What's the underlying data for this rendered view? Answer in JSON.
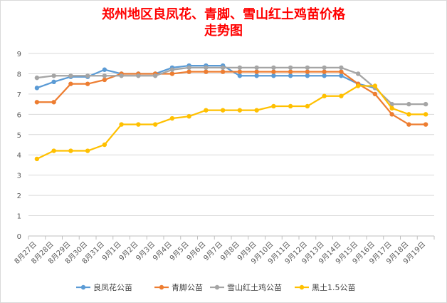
{
  "chart_data": {
    "type": "line",
    "title_line1": "郑州地区良凤花、青脚、雪山红土鸡苗价格",
    "title_line2": "走势图",
    "categories": [
      "8月27日",
      "8月28日",
      "8月29日",
      "8月30日",
      "8月31日",
      "9月1日",
      "9月2日",
      "9月3日",
      "9月4日",
      "9月5日",
      "9月6日",
      "9月7日",
      "9月8日",
      "9月9日",
      "9月10日",
      "9月11日",
      "9月12日",
      "9月13日",
      "9月14日",
      "9月15日",
      "9月16日",
      "9月17日",
      "9月18日",
      "9月19日"
    ],
    "ylim": [
      0,
      9
    ],
    "yticks": [
      0,
      1,
      2,
      3,
      4,
      5,
      6,
      7,
      8,
      9
    ],
    "grid": true,
    "legend_position": "bottom",
    "series": [
      {
        "name": "良凤花公苗",
        "color": "#5b9bd5",
        "values": [
          7.3,
          7.6,
          7.85,
          7.85,
          8.2,
          8.0,
          8.0,
          8.0,
          8.3,
          8.4,
          8.4,
          8.4,
          7.9,
          7.9,
          7.9,
          7.9,
          7.9,
          7.9,
          7.9,
          7.5,
          7.3,
          null,
          null,
          null
        ]
      },
      {
        "name": "青脚公苗",
        "color": "#ed7d31",
        "values": [
          6.6,
          6.6,
          7.5,
          7.5,
          7.7,
          8.0,
          8.0,
          8.0,
          8.0,
          8.1,
          8.1,
          8.1,
          8.1,
          8.1,
          8.1,
          8.1,
          8.1,
          8.1,
          8.1,
          7.5,
          7.0,
          6.0,
          5.5,
          5.5
        ]
      },
      {
        "name": "雪山红土鸡公苗",
        "color": "#a5a5a5",
        "values": [
          7.8,
          7.9,
          7.9,
          7.9,
          7.9,
          7.9,
          7.9,
          7.9,
          8.2,
          8.3,
          8.3,
          8.3,
          8.3,
          8.3,
          8.3,
          8.3,
          8.3,
          8.3,
          8.3,
          8.0,
          7.3,
          6.5,
          6.5,
          6.5
        ]
      },
      {
        "name": "黑土1.5公苗",
        "color": "#ffc000",
        "values": [
          3.8,
          4.2,
          4.2,
          4.2,
          4.5,
          5.5,
          5.5,
          5.5,
          5.8,
          5.9,
          6.2,
          6.2,
          6.2,
          6.2,
          6.4,
          6.4,
          6.4,
          6.9,
          6.9,
          7.4,
          7.4,
          6.3,
          6.0,
          6.0
        ]
      }
    ]
  }
}
